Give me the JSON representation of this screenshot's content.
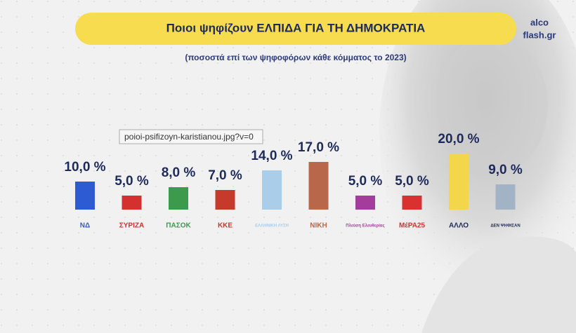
{
  "chart_data": {
    "type": "bar",
    "title": "Ποιοι ψηφίζουν ΕΛΠΙΔΑ ΓΙΑ ΤΗ ΔΗΜΟΚΡΑΤΙΑ",
    "subtitle": "(ποσοστά επί των ψηφοφόρων κάθε κόμματος το 2023)",
    "categories": [
      "ΝΔ",
      "ΣΥΡΙΖΑ",
      "ΠΑΣΟΚ",
      "ΚΚΕ",
      "ΕΛΛΗΝΙΚΗ ΛΥΣΗ",
      "ΝΙΚΗ",
      "Πλεύση Ελευθερίας",
      "ΜέΡΑ25",
      "ΑΛΛΟ",
      "ΔΕΝ ΨΗΦΙΣΑΝ"
    ],
    "values": [
      10,
      5,
      8,
      7,
      14,
      17,
      5,
      5,
      20,
      9
    ],
    "value_labels": [
      "10,0 %",
      "5,0 %",
      "8,0 %",
      "7,0 %",
      "14,0 %",
      "17,0 %",
      "5,0 %",
      "5,0 %",
      "20,0 %",
      "9,0 %"
    ],
    "colors": [
      "#2c5bd4",
      "#d4302f",
      "#3b9a4c",
      "#c63a2b",
      "#aacde9",
      "#b8674a",
      "#a43c9c",
      "#d8312f",
      "#f3d64b",
      "#a3b3c6"
    ]
  },
  "brand": [
    "alco",
    "flash.gr"
  ],
  "tooltip": "poioi-psifizoyn-karistianou.jpg?v=0"
}
